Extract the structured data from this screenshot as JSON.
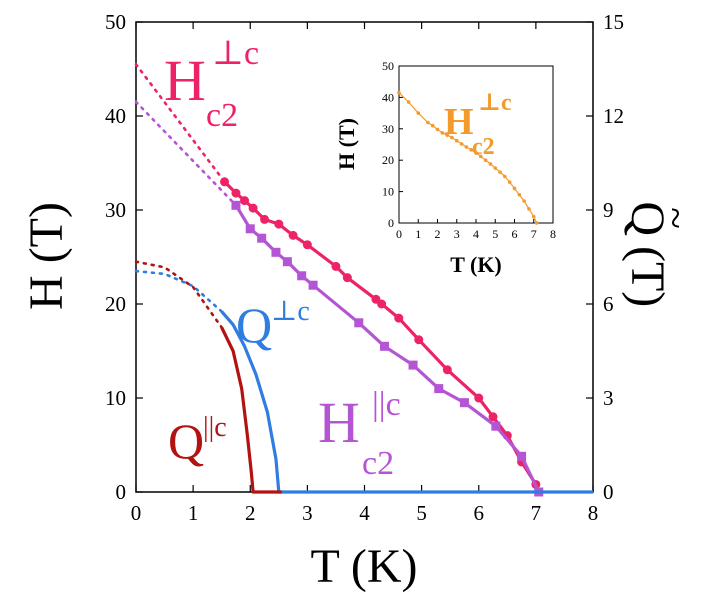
{
  "chart_data": [
    {
      "type": "line",
      "id": "main",
      "xlabel": "T (K)",
      "ylabel_left": "H (T)",
      "ylabel_right_prefix": "Q",
      "ylabel_right_suffix": "(T)",
      "xlim": [
        0,
        8
      ],
      "ylim_left": [
        0,
        50
      ],
      "ylim_right": [
        0,
        15
      ],
      "xticks": [
        "0",
        "1",
        "2",
        "3",
        "4",
        "5",
        "6",
        "7",
        "8"
      ],
      "yticks_left": [
        "0",
        "10",
        "20",
        "30",
        "40",
        "50"
      ],
      "yticks_right": [
        "0",
        "3",
        "6",
        "9",
        "12",
        "15"
      ],
      "colors": {
        "hc2_perp": "#ee2266",
        "hc2_par": "#b455d4",
        "q_perp": "#2f7de0",
        "q_par": "#b31212",
        "inset": "#f39a2a"
      },
      "labels": {
        "hc2_perp_main": "H",
        "hc2_perp_sup": "⊥c",
        "hc2_perp_sub": "c2",
        "hc2_par_main": "H",
        "hc2_par_sup": "||c",
        "hc2_par_sub": "c2",
        "q_perp_main": "Q",
        "q_perp_sup": "⊥c",
        "q_par_main": "Q",
        "q_par_sup": "||c"
      },
      "series": [
        {
          "name": "Hc2 perp c",
          "color_key": "hc2_perp",
          "axis": "left",
          "x": [
            1.55,
            1.75,
            1.9,
            2.05,
            2.25,
            2.5,
            2.75,
            3.0,
            3.5,
            3.7,
            4.2,
            4.3,
            4.6,
            4.95,
            5.45,
            6.0,
            6.25,
            6.5,
            6.75,
            7.0
          ],
          "y": [
            33.0,
            31.8,
            31.0,
            30.2,
            29.0,
            28.5,
            27.3,
            26.3,
            24.0,
            22.8,
            20.5,
            20.0,
            18.5,
            16.2,
            13.0,
            10.0,
            8.0,
            6.0,
            3.2,
            0.8
          ],
          "extrapolation": {
            "x": [
              0,
              1.55
            ],
            "y": [
              45.5,
              33.0
            ]
          }
        },
        {
          "name": "Hc2 par c",
          "color_key": "hc2_par",
          "axis": "left",
          "x": [
            1.75,
            2.0,
            2.2,
            2.45,
            2.65,
            2.9,
            3.1,
            3.9,
            4.35,
            4.85,
            5.3,
            5.75,
            6.3,
            6.75,
            7.05
          ],
          "y": [
            30.5,
            28.0,
            27.0,
            25.5,
            24.5,
            23.0,
            22.0,
            18.0,
            15.5,
            13.5,
            11.0,
            9.5,
            7.0,
            3.8,
            0.0
          ],
          "extrapolation": {
            "x": [
              0,
              1.75
            ],
            "y": [
              41.5,
              30.5
            ]
          }
        },
        {
          "name": "Q perp c",
          "axis": "left",
          "color_key": "q_perp",
          "x": [
            1.5,
            1.7,
            1.9,
            2.1,
            2.3,
            2.45,
            2.5,
            8.0
          ],
          "y": [
            19.2,
            17.8,
            15.5,
            12.5,
            8.5,
            3.5,
            0.0,
            0.0
          ],
          "extrapolation": {
            "x": [
              0,
              0.5,
              1.0,
              1.5
            ],
            "y": [
              23.5,
              23.2,
              21.9,
              19.2
            ]
          }
        },
        {
          "name": "Q par c",
          "axis": "left",
          "color_key": "q_par",
          "x": [
            1.5,
            1.7,
            1.85,
            1.95,
            2.02,
            2.05,
            2.55
          ],
          "y": [
            17.5,
            15.0,
            11.0,
            6.0,
            2.0,
            0.0,
            0.0
          ],
          "extrapolation": {
            "x": [
              0,
              0.5,
              1.0,
              1.5
            ],
            "y": [
              24.5,
              23.9,
              21.8,
              17.5
            ]
          }
        }
      ]
    },
    {
      "type": "line",
      "id": "inset",
      "xlabel": "T (K)",
      "ylabel": "H (T)",
      "xlim": [
        0,
        8
      ],
      "ylim": [
        0,
        50
      ],
      "xticks": [
        "0",
        "1",
        "2",
        "3",
        "4",
        "5",
        "6",
        "7",
        "8"
      ],
      "yticks": [
        "0",
        "10",
        "20",
        "30",
        "40",
        "50"
      ],
      "label_main": "H",
      "label_sup": "⊥c",
      "label_sub": "c2",
      "series": [
        {
          "name": "Hc2 perp c (inset)",
          "x": [
            0.0,
            0.5,
            1.0,
            1.5,
            1.75,
            2.0,
            2.25,
            2.5,
            2.75,
            3.0,
            3.25,
            3.5,
            3.75,
            4.0,
            4.25,
            4.5,
            4.75,
            5.0,
            5.25,
            5.5,
            5.75,
            6.0,
            6.25,
            6.5,
            6.75,
            7.0,
            7.15
          ],
          "y": [
            41.5,
            38.5,
            35.0,
            32.0,
            31.0,
            29.8,
            28.7,
            28.0,
            27.2,
            26.2,
            25.2,
            24.2,
            23.3,
            22.3,
            21.2,
            20.0,
            18.8,
            17.5,
            16.2,
            14.8,
            13.0,
            11.0,
            9.0,
            7.0,
            4.5,
            2.0,
            0.0
          ]
        }
      ]
    }
  ]
}
